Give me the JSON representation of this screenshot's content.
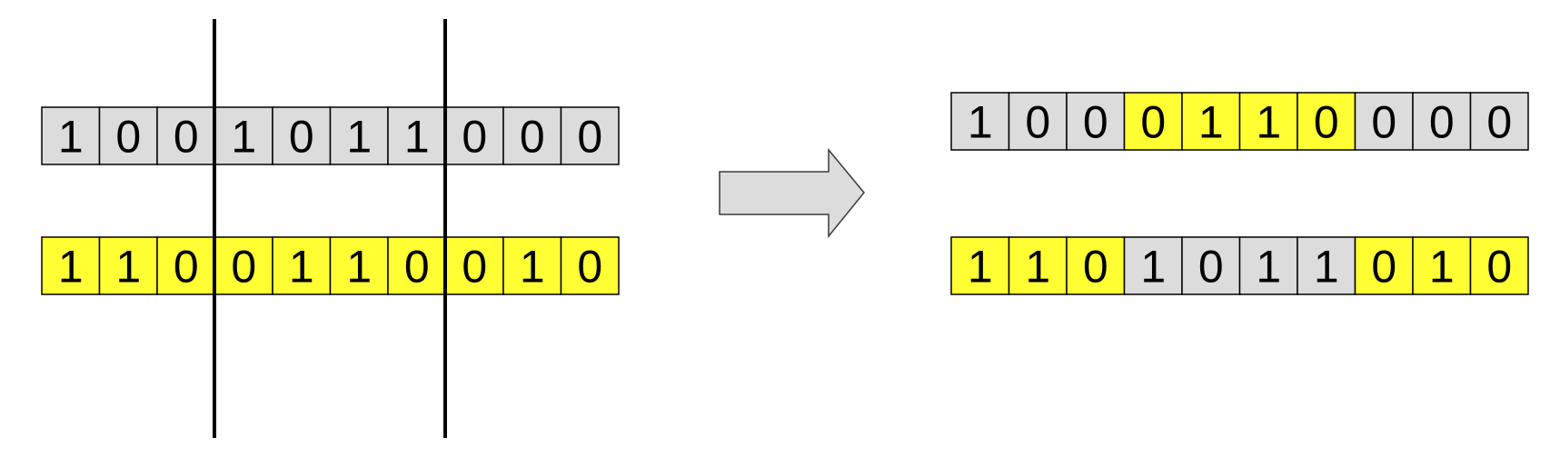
{
  "colors": {
    "gray": "#dcdcdc",
    "yellow": "#ffff33",
    "border": "#000000",
    "arrow_fill": "#dcdcdc",
    "arrow_stroke": "#3a3a3a"
  },
  "before": {
    "parent_1": [
      {
        "bit": "1",
        "color": "gray"
      },
      {
        "bit": "0",
        "color": "gray"
      },
      {
        "bit": "0",
        "color": "gray"
      },
      {
        "bit": "1",
        "color": "gray"
      },
      {
        "bit": "0",
        "color": "gray"
      },
      {
        "bit": "1",
        "color": "gray"
      },
      {
        "bit": "1",
        "color": "gray"
      },
      {
        "bit": "0",
        "color": "gray"
      },
      {
        "bit": "0",
        "color": "gray"
      },
      {
        "bit": "0",
        "color": "gray"
      }
    ],
    "parent_2": [
      {
        "bit": "1",
        "color": "yellow"
      },
      {
        "bit": "1",
        "color": "yellow"
      },
      {
        "bit": "0",
        "color": "yellow"
      },
      {
        "bit": "0",
        "color": "yellow"
      },
      {
        "bit": "1",
        "color": "yellow"
      },
      {
        "bit": "1",
        "color": "yellow"
      },
      {
        "bit": "0",
        "color": "yellow"
      },
      {
        "bit": "0",
        "color": "yellow"
      },
      {
        "bit": "1",
        "color": "yellow"
      },
      {
        "bit": "0",
        "color": "yellow"
      }
    ],
    "cut_points_after_index": [
      3,
      7
    ]
  },
  "after": {
    "child_1": [
      {
        "bit": "1",
        "color": "gray"
      },
      {
        "bit": "0",
        "color": "gray"
      },
      {
        "bit": "0",
        "color": "gray"
      },
      {
        "bit": "0",
        "color": "yellow"
      },
      {
        "bit": "1",
        "color": "yellow"
      },
      {
        "bit": "1",
        "color": "yellow"
      },
      {
        "bit": "0",
        "color": "yellow"
      },
      {
        "bit": "0",
        "color": "gray"
      },
      {
        "bit": "0",
        "color": "gray"
      },
      {
        "bit": "0",
        "color": "gray"
      }
    ],
    "child_2": [
      {
        "bit": "1",
        "color": "yellow"
      },
      {
        "bit": "1",
        "color": "yellow"
      },
      {
        "bit": "0",
        "color": "yellow"
      },
      {
        "bit": "1",
        "color": "gray"
      },
      {
        "bit": "0",
        "color": "gray"
      },
      {
        "bit": "1",
        "color": "gray"
      },
      {
        "bit": "1",
        "color": "gray"
      },
      {
        "bit": "0",
        "color": "yellow"
      },
      {
        "bit": "1",
        "color": "yellow"
      },
      {
        "bit": "0",
        "color": "yellow"
      }
    ]
  },
  "arrow": {
    "icon": "right-arrow-icon"
  }
}
